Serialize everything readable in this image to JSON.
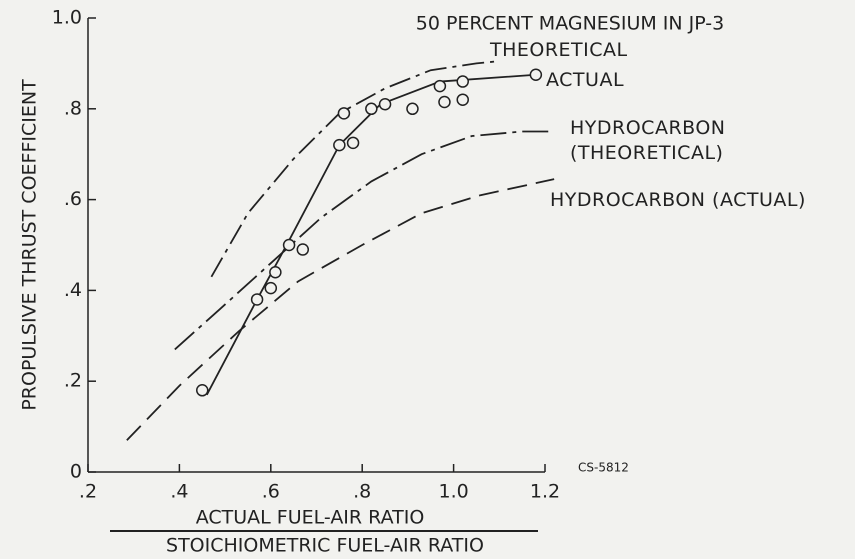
{
  "chart_data": {
    "type": "line",
    "title": "50 PERCENT MAGNESIUM IN JP-3",
    "xlabel": [
      "ACTUAL FUEL-AIR RATIO",
      "STOICHIOMETRIC FUEL-AIR RATIO"
    ],
    "ylabel": "PROPULSIVE THRUST COEFFICIENT",
    "note": "CS-5812",
    "xlim": [
      0.2,
      1.2
    ],
    "ylim": [
      0,
      1.0
    ],
    "xticks": [
      {
        "value": 0.2,
        "label": ".2"
      },
      {
        "value": 0.4,
        "label": ".4"
      },
      {
        "value": 0.6,
        "label": ".6"
      },
      {
        "value": 0.8,
        "label": ".8"
      },
      {
        "value": 1.0,
        "label": "1.0"
      },
      {
        "value": 1.2,
        "label": "1.2"
      }
    ],
    "yticks": [
      0,
      {
        "value": 0.2,
        "label": ".2"
      },
      {
        "value": 0.4,
        "label": ".4"
      },
      {
        "value": 0.6,
        "label": ".6"
      },
      {
        "value": 0.8,
        "label": ".8"
      },
      {
        "value": 1.0,
        "label": "1.0"
      }
    ],
    "color": "#222222",
    "series": [
      {
        "name": "THEORETICAL",
        "dash": "22 6 4 6",
        "x": [
          0.47,
          0.55,
          0.65,
          0.75,
          0.85,
          0.95,
          1.05,
          1.1
        ],
        "values": [
          0.43,
          0.57,
          0.69,
          0.79,
          0.845,
          0.885,
          0.9,
          0.905
        ]
      },
      {
        "name": "ACTUAL",
        "x": [
          0.46,
          0.57,
          0.64,
          0.75,
          0.84,
          0.97,
          1.18
        ],
        "values": [
          0.17,
          0.38,
          0.51,
          0.72,
          0.81,
          0.86,
          0.875
        ]
      },
      {
        "name": "HYDROCARBON (THEORETICAL)",
        "dash": "26 6 4 6",
        "x": [
          0.39,
          0.49,
          0.6,
          0.71,
          0.82,
          0.93,
          1.04,
          1.15,
          1.22
        ],
        "values": [
          0.27,
          0.36,
          0.46,
          0.56,
          0.64,
          0.7,
          0.74,
          0.75,
          0.75
        ]
      },
      {
        "name": "HYDROCARBON (ACTUAL)",
        "dash": "20 9",
        "x": [
          0.285,
          0.4,
          0.53,
          0.66,
          0.8,
          0.93,
          1.06,
          1.22
        ],
        "values": [
          0.07,
          0.19,
          0.31,
          0.42,
          0.5,
          0.57,
          0.61,
          0.645
        ]
      }
    ],
    "points": {
      "x": [
        0.45,
        0.57,
        0.6,
        0.61,
        0.64,
        0.67,
        0.75,
        0.78,
        0.76,
        0.82,
        0.85,
        0.91,
        0.97,
        1.02,
        0.98,
        1.02,
        1.18
      ],
      "values": [
        0.18,
        0.38,
        0.405,
        0.44,
        0.5,
        0.49,
        0.72,
        0.725,
        0.79,
        0.8,
        0.81,
        0.8,
        0.85,
        0.86,
        0.815,
        0.82,
        0.875
      ]
    }
  }
}
